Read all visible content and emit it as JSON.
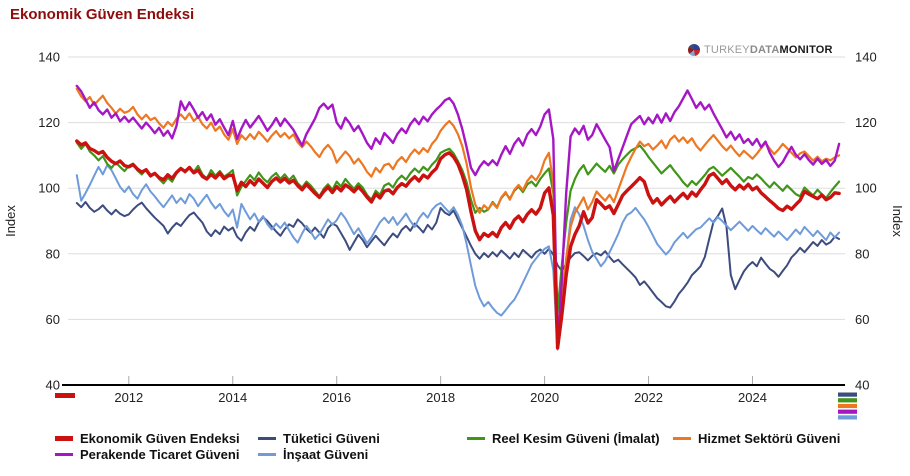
{
  "page": {
    "title": "Ekonomik Güven Endeksi"
  },
  "logo": {
    "part1": "TURKEY",
    "part2": "DATA",
    "part3": "MONITOR"
  },
  "axes": {
    "y_label_left": "Index",
    "y_label_right": "Index",
    "y_ticks": [
      140,
      120,
      100,
      80,
      60,
      40
    ],
    "x_ticks": [
      2012,
      2014,
      2016,
      2018,
      2020,
      2022,
      2024
    ],
    "y_min": 40,
    "y_max": 140,
    "x_min": 2010.83,
    "x_max": 2025.78,
    "grid_color": "#dddddd",
    "axis_color": "#000000",
    "tick_color": "#aaaaaa"
  },
  "chart_data": {
    "type": "line",
    "title": "Ekonomik Güven Endeksi",
    "xlabel": "",
    "ylabel": "Index",
    "ylim": [
      40,
      140
    ],
    "x_start": 2011.0,
    "x_step": 0.0833333,
    "x_note": "monthly values, Jan 2011 - Sep 2025",
    "legend_position": "bottom",
    "grid": true,
    "draw_order": [
      1,
      5,
      2,
      3,
      4,
      0
    ],
    "series": [
      {
        "id": "ekonomik-guven-endeksi",
        "name": "Ekonomik Güven Endeksi",
        "color": "#cc1111",
        "stroke_width": 3.4,
        "values": [
          114.4,
          113.2,
          113.8,
          112.1,
          111.5,
          110.6,
          111.2,
          109.4,
          108.2,
          107.5,
          108.3,
          106.9,
          106.5,
          107.2,
          105.8,
          104.9,
          105.6,
          103.8,
          104.5,
          103.2,
          102.6,
          104.1,
          103.0,
          104.8,
          106.0,
          105.1,
          106.3,
          104.7,
          105.5,
          103.6,
          102.8,
          104.2,
          103.1,
          104.6,
          102.9,
          103.8,
          104.0,
          99.3,
          101.8,
          100.5,
          102.3,
          101.0,
          102.8,
          101.5,
          100.2,
          102.0,
          103.1,
          101.9,
          103.0,
          101.6,
          102.4,
          100.8,
          99.5,
          101.2,
          99.8,
          98.4,
          97.2,
          99.0,
          100.3,
          98.7,
          100.5,
          99.2,
          101.0,
          100.1,
          98.9,
          100.4,
          99.0,
          97.3,
          95.8,
          98.2,
          97.0,
          99.1,
          99.5,
          98.3,
          100.2,
          101.4,
          100.6,
          102.3,
          103.5,
          102.2,
          104.0,
          103.1,
          104.8,
          106.0,
          109.0,
          110.2,
          110.8,
          109.5,
          107.3,
          103.9,
          99.6,
          92.8,
          87.0,
          84.3,
          86.2,
          85.3,
          86.5,
          85.2,
          88.0,
          89.5,
          87.8,
          90.3,
          91.5,
          89.8,
          92.0,
          93.4,
          92.1,
          94.0,
          98.5,
          100.1,
          91.8,
          51.3,
          61.5,
          73.5,
          82.2,
          85.9,
          88.5,
          92.8,
          89.4,
          91.0,
          96.5,
          95.2,
          93.8,
          94.6,
          92.3,
          95.0,
          97.8,
          99.2,
          100.5,
          101.8,
          103.2,
          102.0,
          98.0,
          95.5,
          96.8,
          94.9,
          96.3,
          97.5,
          95.8,
          97.2,
          98.4,
          96.9,
          98.8,
          97.6,
          99.5,
          101.2,
          103.8,
          104.5,
          103.0,
          101.4,
          102.6,
          100.8,
          99.5,
          100.9,
          99.8,
          101.2,
          99.5,
          100.3,
          98.6,
          97.4,
          96.2,
          95.1,
          93.8,
          93.2,
          94.5,
          93.6,
          95.0,
          96.3,
          99.0,
          98.2,
          97.5,
          96.8,
          97.9,
          96.5,
          97.2,
          98.6,
          98.4
        ]
      },
      {
        "id": "tuketici-guveni",
        "name": "Tüketici Güveni",
        "color": "#3d4c7f",
        "stroke_width": 2,
        "values": [
          95.5,
          94.2,
          95.8,
          94.0,
          92.8,
          93.6,
          94.8,
          93.2,
          92.0,
          93.4,
          92.2,
          91.5,
          92.0,
          93.5,
          94.8,
          95.6,
          93.9,
          92.4,
          91.0,
          89.8,
          88.5,
          86.2,
          88.0,
          89.4,
          88.5,
          90.2,
          91.8,
          92.6,
          91.0,
          89.5,
          86.8,
          85.4,
          87.2,
          86.0,
          88.3,
          87.1,
          88.0,
          85.2,
          84.0,
          86.5,
          88.2,
          87.0,
          89.6,
          91.2,
          90.0,
          88.4,
          86.8,
          85.5,
          87.5,
          89.0,
          88.2,
          90.5,
          89.3,
          87.6,
          86.4,
          88.0,
          86.5,
          84.9,
          87.8,
          89.2,
          88.5,
          86.3,
          84.0,
          81.2,
          83.5,
          85.8,
          84.2,
          82.0,
          83.8,
          85.5,
          84.0,
          82.6,
          84.5,
          86.2,
          85.0,
          87.3,
          88.5,
          87.0,
          89.2,
          88.0,
          86.5,
          88.8,
          87.4,
          89.5,
          94.0,
          92.5,
          91.8,
          93.2,
          90.5,
          87.9,
          85.2,
          82.4,
          80.0,
          78.5,
          80.2,
          79.0,
          80.5,
          79.2,
          81.0,
          79.8,
          78.5,
          80.3,
          79.0,
          81.2,
          80.0,
          78.8,
          80.5,
          81.3,
          80.0,
          81.5,
          79.8,
          76.5,
          74.8,
          77.0,
          78.8,
          80.2,
          80.5,
          79.3,
          78.0,
          79.4,
          80.2,
          79.5,
          80.8,
          79.0,
          77.5,
          78.2,
          76.8,
          75.5,
          74.2,
          72.8,
          70.5,
          71.6,
          70.0,
          68.2,
          66.5,
          65.3,
          64.0,
          63.6,
          65.5,
          67.8,
          69.4,
          71.2,
          73.5,
          74.8,
          76.2,
          79.0,
          84.5,
          89.8,
          91.5,
          93.8,
          88.2,
          73.5,
          69.2,
          72.0,
          74.6,
          76.3,
          77.5,
          76.2,
          78.8,
          77.0,
          75.4,
          74.5,
          73.0,
          74.8,
          76.5,
          78.9,
          80.2,
          81.8,
          80.5,
          82.0,
          83.6,
          82.4,
          84.2,
          82.8,
          83.5,
          85.2,
          84.5
        ]
      },
      {
        "id": "reel-kesim-guveni",
        "name": "Reel Kesim Güveni (İmalat)",
        "color": "#3f9619",
        "stroke_width": 2.2,
        "values": [
          113.9,
          112.0,
          113.5,
          111.2,
          110.0,
          108.5,
          109.8,
          107.4,
          106.2,
          107.8,
          106.5,
          105.2,
          106.8,
          107.5,
          105.4,
          104.2,
          105.8,
          103.5,
          104.6,
          102.8,
          101.5,
          103.2,
          102.0,
          104.5,
          106.2,
          104.8,
          106.5,
          105.0,
          106.8,
          104.2,
          103.0,
          105.5,
          103.8,
          105.2,
          103.5,
          104.4,
          105.5,
          97.8,
          100.5,
          102.2,
          104.0,
          102.5,
          104.8,
          103.0,
          101.8,
          103.5,
          104.6,
          102.8,
          104.2,
          102.5,
          103.8,
          101.5,
          100.2,
          102.0,
          100.8,
          99.2,
          97.5,
          99.8,
          101.2,
          99.5,
          102.0,
          100.5,
          102.8,
          101.2,
          99.8,
          101.5,
          100.2,
          98.0,
          96.5,
          99.2,
          98.0,
          100.8,
          101.5,
          100.2,
          102.5,
          103.8,
          102.6,
          104.5,
          106.0,
          104.8,
          106.5,
          105.4,
          107.2,
          108.5,
          110.8,
          111.5,
          112.0,
          110.6,
          108.2,
          105.5,
          101.8,
          96.4,
          92.5,
          94.0,
          92.8,
          93.5,
          95.8,
          94.2,
          97.0,
          98.5,
          96.8,
          99.2,
          100.5,
          98.8,
          101.2,
          102.0,
          100.6,
          102.8,
          104.5,
          106.0,
          98.5,
          62.3,
          76.8,
          89.5,
          99.2,
          102.8,
          105.4,
          107.0,
          104.2,
          105.8,
          107.5,
          106.2,
          105.0,
          106.8,
          104.5,
          107.2,
          108.8,
          110.2,
          111.5,
          112.2,
          113.0,
          111.4,
          109.5,
          107.8,
          106.2,
          104.5,
          105.8,
          107.0,
          105.2,
          103.6,
          101.8,
          100.5,
          102.2,
          101.0,
          102.5,
          104.0,
          105.8,
          106.5,
          105.2,
          103.8,
          105.0,
          106.2,
          104.8,
          103.5,
          102.0,
          103.4,
          102.8,
          104.2,
          103.0,
          101.5,
          100.2,
          101.8,
          100.5,
          99.2,
          100.8,
          99.5,
          98.2,
          97.5,
          100.2,
          99.0,
          97.8,
          99.5,
          98.2,
          97.0,
          98.8,
          100.5,
          102.0
        ]
      },
      {
        "id": "hizmet-sektoru-guveni",
        "name": "Hizmet Sektörü Güveni",
        "color": "#ee7722",
        "stroke_width": 2.2,
        "values": [
          130.3,
          128.0,
          126.5,
          127.8,
          125.4,
          126.8,
          128.2,
          126.0,
          124.5,
          122.8,
          124.2,
          123.0,
          123.5,
          124.8,
          122.5,
          121.0,
          122.4,
          120.8,
          121.5,
          119.8,
          118.4,
          120.2,
          119.0,
          121.2,
          122.5,
          121.0,
          122.8,
          120.5,
          121.8,
          119.5,
          118.2,
          120.0,
          117.5,
          118.8,
          116.4,
          114.8,
          118.0,
          113.5,
          116.2,
          114.8,
          116.5,
          115.0,
          117.2,
          115.8,
          114.2,
          116.0,
          117.4,
          115.6,
          116.8,
          115.2,
          116.4,
          114.0,
          112.5,
          114.2,
          112.8,
          111.0,
          109.5,
          111.8,
          113.2,
          111.5,
          107.8,
          109.5,
          111.2,
          109.8,
          107.5,
          109.0,
          107.2,
          105.0,
          103.5,
          106.2,
          104.8,
          107.0,
          107.5,
          105.8,
          108.2,
          109.5,
          108.0,
          110.2,
          111.8,
          110.5,
          112.2,
          111.0,
          113.5,
          115.0,
          117.5,
          119.2,
          120.5,
          119.0,
          116.4,
          112.8,
          107.5,
          100.2,
          95.0,
          92.5,
          94.8,
          93.6,
          95.5,
          94.0,
          97.2,
          98.8,
          96.5,
          99.5,
          101.0,
          99.4,
          102.2,
          103.8,
          102.4,
          104.5,
          108.5,
          110.8,
          101.5,
          56.2,
          66.0,
          78.5,
          88.2,
          92.5,
          94.8,
          97.2,
          93.5,
          95.8,
          99.0,
          97.5,
          96.2,
          98.0,
          95.8,
          99.5,
          103.2,
          106.8,
          109.5,
          112.0,
          114.2,
          112.8,
          113.5,
          111.8,
          113.0,
          114.5,
          112.2,
          114.8,
          116.0,
          114.2,
          115.5,
          113.8,
          115.2,
          113.0,
          111.5,
          113.2,
          114.8,
          116.2,
          114.5,
          112.8,
          111.5,
          113.0,
          111.2,
          109.8,
          111.4,
          110.2,
          109.0,
          110.5,
          112.2,
          113.8,
          112.0,
          110.4,
          111.8,
          113.5,
          112.2,
          110.8,
          109.4,
          110.6,
          111.2,
          109.8,
          108.4,
          109.6,
          108.2,
          109.0,
          108.5,
          109.4,
          110.0
        ]
      },
      {
        "id": "perakende-ticaret-guveni",
        "name": "Perakende Ticaret Güveni",
        "color": "#a517c5",
        "stroke_width": 2.4,
        "values": [
          131.2,
          129.5,
          127.0,
          124.5,
          126.2,
          123.8,
          122.5,
          124.0,
          121.5,
          122.8,
          120.4,
          121.8,
          120.2,
          121.5,
          119.8,
          118.2,
          120.0,
          118.5,
          116.8,
          118.4,
          116.0,
          117.5,
          115.2,
          119.0,
          126.5,
          123.8,
          126.2,
          124.0,
          121.5,
          123.2,
          120.8,
          122.5,
          119.4,
          121.0,
          118.5,
          116.2,
          120.5,
          115.0,
          118.2,
          120.8,
          118.5,
          120.2,
          122.0,
          119.8,
          117.5,
          119.2,
          121.4,
          119.0,
          121.2,
          119.5,
          117.8,
          115.4,
          113.0,
          116.5,
          118.8,
          121.2,
          124.5,
          125.8,
          124.2,
          125.5,
          120.0,
          118.2,
          121.5,
          119.8,
          117.4,
          119.0,
          116.5,
          113.8,
          112.0,
          115.2,
          113.5,
          116.8,
          115.4,
          113.8,
          116.5,
          118.2,
          116.8,
          119.5,
          121.2,
          119.5,
          121.8,
          120.4,
          122.5,
          124.0,
          125.2,
          126.8,
          127.5,
          125.8,
          122.4,
          118.0,
          112.5,
          106.2,
          104.0,
          106.5,
          108.2,
          107.0,
          108.5,
          107.0,
          110.2,
          112.8,
          110.5,
          113.5,
          115.2,
          113.0,
          116.4,
          118.0,
          116.2,
          118.8,
          122.5,
          124.0,
          115.0,
          51.5,
          72.5,
          98.5,
          115.8,
          118.2,
          116.5,
          119.0,
          114.8,
          116.2,
          119.5,
          117.2,
          114.8,
          112.5,
          105.2,
          108.8,
          112.4,
          116.0,
          119.5,
          120.8,
          122.0,
          119.5,
          121.5,
          119.8,
          122.4,
          120.0,
          122.8,
          120.5,
          123.2,
          125.0,
          127.4,
          129.8,
          127.2,
          124.5,
          126.2,
          124.0,
          125.5,
          122.8,
          120.4,
          118.0,
          115.5,
          117.2,
          114.8,
          116.4,
          113.8,
          115.0,
          113.2,
          115.0,
          112.5,
          114.2,
          110.8,
          108.4,
          106.5,
          108.0,
          110.4,
          112.6,
          110.2,
          108.8,
          110.4,
          108.6,
          107.2,
          109.0,
          107.4,
          108.6,
          106.8,
          108.4,
          113.5
        ]
      },
      {
        "id": "insaat-guveni",
        "name": "İnşaat Güveni",
        "color": "#6f9bd9",
        "stroke_width": 2,
        "values": [
          104.0,
          96.2,
          98.5,
          101.0,
          103.8,
          106.5,
          104.2,
          107.0,
          105.5,
          103.0,
          100.4,
          98.8,
          100.5,
          98.2,
          96.8,
          99.4,
          101.2,
          99.0,
          97.5,
          95.8,
          94.2,
          96.0,
          97.8,
          95.5,
          97.0,
          95.4,
          98.2,
          96.8,
          94.5,
          96.3,
          98.0,
          95.6,
          93.8,
          95.2,
          93.0,
          91.4,
          93.5,
          88.0,
          95.2,
          92.8,
          90.5,
          92.3,
          89.8,
          91.5,
          89.0,
          87.4,
          89.2,
          87.8,
          89.5,
          87.2,
          85.0,
          83.4,
          86.2,
          88.5,
          86.8,
          84.5,
          86.0,
          88.2,
          90.5,
          88.9,
          90.2,
          92.5,
          90.8,
          88.4,
          86.0,
          87.8,
          85.5,
          83.2,
          85.0,
          87.3,
          89.6,
          91.0,
          89.4,
          91.2,
          88.8,
          90.5,
          92.3,
          90.0,
          88.2,
          90.8,
          92.5,
          91.0,
          93.4,
          94.8,
          95.5,
          94.0,
          92.6,
          94.2,
          91.8,
          88.5,
          83.0,
          76.4,
          70.2,
          66.5,
          64.0,
          65.3,
          63.5,
          62.0,
          61.2,
          62.8,
          64.5,
          66.0,
          68.4,
          71.2,
          74.0,
          76.8,
          78.5,
          80.2,
          81.5,
          82.3,
          75.0,
          50.8,
          60.2,
          78.5,
          90.4,
          94.2,
          92.0,
          88.5,
          84.2,
          80.6,
          78.4,
          76.2,
          77.8,
          80.5,
          83.2,
          86.0,
          89.5,
          91.8,
          92.6,
          94.0,
          92.2,
          90.5,
          88.2,
          85.6,
          83.0,
          81.4,
          79.8,
          81.2,
          83.5,
          85.0,
          86.4,
          84.8,
          86.2,
          87.5,
          88.0,
          89.4,
          90.8,
          89.5,
          91.2,
          90.0,
          88.6,
          87.2,
          88.5,
          89.8,
          88.4,
          87.0,
          88.5,
          87.2,
          86.0,
          87.8,
          86.5,
          85.2,
          86.8,
          85.5,
          84.2,
          85.8,
          87.4,
          86.0,
          88.2,
          86.8,
          85.4,
          87.0,
          85.6,
          84.2,
          86.5,
          85.0,
          86.5
        ]
      }
    ]
  }
}
